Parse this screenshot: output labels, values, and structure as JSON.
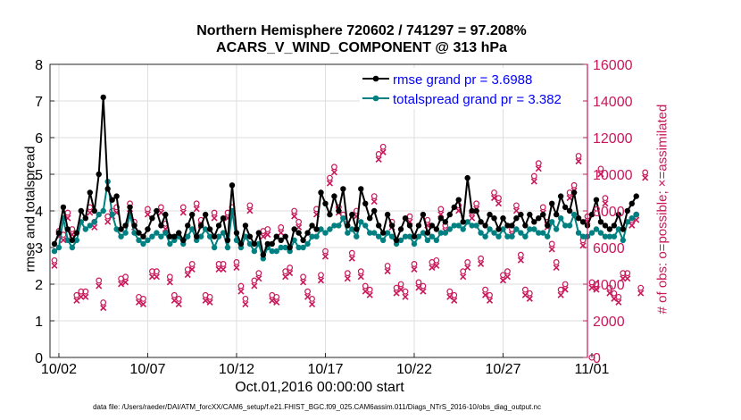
{
  "chart_data": {
    "type": "line",
    "title_line1": "Northern Hemisphere 720602 / 741297 = 97.208%",
    "title_line2": "ACARS_V_WIND_COMPONENT @ 313 hPa",
    "ylabel_left": "rmse and totalspread",
    "ylabel_right": "# of obs: o=possible; ×=assimilated",
    "xlabel": "Oct.01,2016 00:00:00 start",
    "footer": "data file: /Users/raeder/DAI/ATM_forcXX/CAM6_setup/f.e21.FHIST_BGC.f09_025.CAM6assim.011/Diags_NTrS_2016-10/obs_diag_output.nc",
    "xlim": [
      1.5,
      31.75
    ],
    "ylim_left": [
      0,
      8
    ],
    "ylim_right": [
      0,
      16000
    ],
    "x_ticks": [
      2,
      7,
      12,
      17,
      22,
      27,
      32
    ],
    "x_tick_labels": [
      "10/02",
      "10/07",
      "10/12",
      "10/17",
      "10/22",
      "10/27",
      "11/01"
    ],
    "y_left_ticks": [
      "0",
      "1",
      "2",
      "3",
      "4",
      "5",
      "6",
      "7",
      "8"
    ],
    "y_right_ticks": [
      "0",
      "2000",
      "4000",
      "6000",
      "8000",
      "10000",
      "12000",
      "14000",
      "16000"
    ],
    "grid": true,
    "legend": "top-right",
    "colors": {
      "rmse": "#000000",
      "spread": "#008080",
      "obs": "#c8185a",
      "legend_text": "#0000ff"
    },
    "series": [
      {
        "name": "rmse grand pr = 3.6988",
        "x_start": 1.75,
        "x_step": 0.25,
        "values": [
          3.1,
          3.4,
          4.1,
          3.5,
          3.2,
          3.4,
          4.0,
          3.8,
          4.5,
          4.0,
          5.0,
          7.1,
          4.6,
          4.3,
          4.4,
          3.5,
          3.6,
          4.1,
          3.6,
          3.4,
          3.3,
          3.5,
          3.8,
          4.0,
          3.6,
          3.9,
          3.3,
          3.3,
          3.4,
          3.2,
          3.6,
          3.9,
          3.3,
          3.6,
          3.9,
          3.5,
          3.3,
          3.6,
          3.8,
          3.2,
          4.7,
          3.4,
          3.1,
          3.6,
          3.3,
          3.1,
          3.4,
          2.8,
          3.1,
          3.1,
          3.3,
          3.2,
          3.3,
          3.0,
          3.5,
          3.4,
          3.2,
          3.4,
          3.6,
          3.5,
          4.5,
          4.2,
          3.9,
          4.4,
          4.0,
          4.6,
          3.6,
          3.9,
          3.5,
          4.6,
          4.2,
          3.8,
          4.0,
          3.6,
          3.4,
          3.9,
          3.6,
          3.2,
          3.5,
          3.8,
          3.6,
          3.3,
          3.6,
          3.9,
          3.4,
          3.6,
          3.5,
          3.8,
          3.7,
          3.9,
          4.1,
          4.3,
          3.7,
          4.9,
          4.0,
          4.0,
          3.7,
          3.6,
          3.9,
          3.8,
          3.5,
          3.8,
          3.6,
          3.6,
          3.8,
          3.9,
          3.6,
          3.9,
          3.7,
          3.8,
          3.9,
          3.6,
          4.2,
          3.9,
          4.4,
          4.1,
          4.0,
          4.5,
          3.8,
          3.7,
          3.6,
          3.9,
          4.3,
          3.7,
          3.6,
          3.5,
          3.6,
          3.9,
          3.5,
          4.0,
          4.2,
          4.4
        ]
      },
      {
        "name": "totalspread grand pr = 3.382",
        "x_start": 1.75,
        "x_step": 0.25,
        "values": [
          2.9,
          3.0,
          3.8,
          3.2,
          3.0,
          3.2,
          3.7,
          3.5,
          3.6,
          3.7,
          3.9,
          4.0,
          4.8,
          3.9,
          3.5,
          3.3,
          3.4,
          3.9,
          3.4,
          3.2,
          3.1,
          3.2,
          3.3,
          3.4,
          3.3,
          3.4,
          3.1,
          3.2,
          3.3,
          3.1,
          3.3,
          3.5,
          3.2,
          3.3,
          3.5,
          3.3,
          3.0,
          3.3,
          3.4,
          3.0,
          4.0,
          3.2,
          3.0,
          3.3,
          3.1,
          2.9,
          3.1,
          2.7,
          3.0,
          2.9,
          2.9,
          3.0,
          3.0,
          2.9,
          3.2,
          3.0,
          3.0,
          3.1,
          3.3,
          3.3,
          3.5,
          3.4,
          3.5,
          3.6,
          3.6,
          3.8,
          3.4,
          3.5,
          3.3,
          3.7,
          3.6,
          3.4,
          3.4,
          3.3,
          3.2,
          3.4,
          3.3,
          3.1,
          3.2,
          3.3,
          3.3,
          3.1,
          3.3,
          3.4,
          3.2,
          3.3,
          3.2,
          3.4,
          3.4,
          3.5,
          3.6,
          3.6,
          3.5,
          3.7,
          3.6,
          3.6,
          3.4,
          3.3,
          3.5,
          3.4,
          3.3,
          3.5,
          3.3,
          3.3,
          3.5,
          3.4,
          3.3,
          3.5,
          3.5,
          3.4,
          3.4,
          3.3,
          3.7,
          3.5,
          3.8,
          3.6,
          3.6,
          3.9,
          3.4,
          3.3,
          3.3,
          3.4,
          3.5,
          3.4,
          3.3,
          3.3,
          3.3,
          3.5,
          3.2,
          3.7,
          3.8,
          3.9
        ]
      }
    ],
    "obs_counts": {
      "x_start": 1.75,
      "x_step": 0.25,
      "possible": [
        5300,
        6900,
        6700,
        7900,
        7000,
        3400,
        3600,
        3600,
        8200,
        7400,
        4200,
        3000,
        7700,
        8000,
        8200,
        4300,
        4400,
        8400,
        7400,
        3300,
        3200,
        8100,
        4700,
        4700,
        8200,
        7300,
        4400,
        3400,
        3200,
        8200,
        4800,
        5100,
        8400,
        7500,
        3400,
        3300,
        7900,
        5100,
        5100,
        7900,
        8200,
        5200,
        3900,
        3200,
        8300,
        4200,
        4600,
        6900,
        7000,
        3400,
        3300,
        7100,
        4700,
        4900,
        8000,
        7400,
        4400,
        3600,
        3200,
        8100,
        4500,
        5800,
        9800,
        10400,
        8200,
        7800,
        4600,
        5700,
        8000,
        4700,
        3900,
        3700,
        8800,
        11100,
        11500,
        5000,
        7400,
        3800,
        4000,
        3600,
        7700,
        5100,
        4100,
        3900,
        7500,
        5200,
        5300,
        8100,
        7200,
        3600,
        3400,
        8300,
        4700,
        5200,
        7900,
        8400,
        5400,
        3700,
        3400,
        9000,
        8700,
        4500,
        4700,
        7000,
        8300,
        5600,
        3700,
        3500,
        9900,
        10600,
        8200,
        7400,
        6200,
        5200,
        3700,
        4000,
        9000,
        9400,
        11000,
        6400,
        7700,
        4100,
        4000,
        10300,
        8700,
        3800,
        3500,
        3300,
        4600,
        4600,
        7500,
        7800,
        3800,
        10100
      ]
    }
  }
}
